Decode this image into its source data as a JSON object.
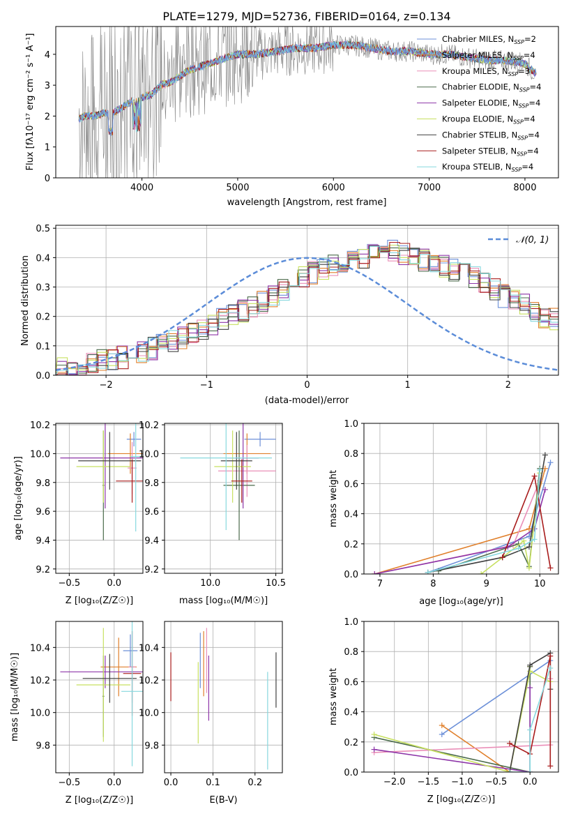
{
  "figure_title": "PLATE=1279, MJD=52736, FIBERID=0164, z=0.134",
  "colors": {
    "Chabrier MILES": "#6b8fd8",
    "Salpeter MILES": "#e07f2a",
    "Kroupa MILES": "#ea8fb8",
    "Chabrier ELODIE": "#4a6a4a",
    "Salpeter ELODIE": "#8d35a8",
    "Kroupa ELODIE": "#c7e060",
    "Chabrier STELIB": "#404040",
    "Salpeter STELIB": "#a81c1c",
    "Kroupa STELIB": "#86d8de"
  },
  "chart_data": [
    {
      "type": "line",
      "title": "PLATE=1279, MJD=52736, FIBERID=0164, z=0.134",
      "xlabel": "wavelength [Angstrom, rest frame]",
      "ylabel": "Flux [fλ10⁻¹⁷ erg cm⁻² s⁻¹ A⁻¹]",
      "xlim": [
        3100,
        8350
      ],
      "ylim": [
        0,
        4.9
      ],
      "xticks": [
        4000,
        5000,
        6000,
        7000,
        8000
      ],
      "yticks": [
        0,
        1,
        2,
        3,
        4
      ],
      "grid": false,
      "legend_position": "top-right",
      "data_series": {
        "name": "data",
        "color": "#808080",
        "x": [
          3340,
          3400,
          3500,
          3600,
          3700,
          3800,
          3900,
          4000,
          4100,
          4200,
          4300,
          4400,
          4500,
          4600,
          4700,
          4800,
          4900,
          5000,
          5200,
          5400,
          5600,
          5800,
          6000,
          6200,
          6400,
          6600,
          6800,
          7000,
          7200,
          7400,
          7600,
          7800,
          8000,
          8100
        ],
        "y": [
          1.9,
          2.0,
          2.0,
          2.1,
          2.1,
          2.3,
          2.5,
          2.6,
          2.7,
          3.0,
          3.1,
          3.3,
          3.5,
          3.6,
          3.7,
          3.8,
          3.9,
          4.0,
          4.0,
          4.1,
          4.2,
          4.2,
          4.3,
          4.3,
          4.2,
          4.1,
          4.1,
          4.0,
          4.0,
          3.9,
          3.8,
          3.8,
          3.7,
          3.4
        ]
      },
      "series": [
        {
          "name": "Chabrier MILES, N_SSP=2"
        },
        {
          "name": "Salpeter MILES, N_SSP=4"
        },
        {
          "name": "Kroupa MILES, N_SSP=3"
        },
        {
          "name": "Chabrier ELODIE, N_SSP=4"
        },
        {
          "name": "Salpeter ELODIE, N_SSP=4"
        },
        {
          "name": "Kroupa ELODIE, N_SSP=4"
        },
        {
          "name": "Chabrier STELIB, N_SSP=4"
        },
        {
          "name": "Salpeter STELIB, N_SSP=4"
        },
        {
          "name": "Kroupa STELIB, N_SSP=4"
        }
      ]
    },
    {
      "type": "line",
      "xlabel": "(data-model)/error",
      "ylabel": "Normed distribution",
      "xlim": [
        -2.5,
        2.5
      ],
      "ylim": [
        0,
        0.51
      ],
      "xticks": [
        -2,
        -1,
        0,
        1,
        2
      ],
      "yticks": [
        0.0,
        0.1,
        0.2,
        0.3,
        0.4,
        0.5
      ],
      "grid": true,
      "legend": "𝒩(0, 1)",
      "legend_position": "top-right",
      "bin_width": 0.1,
      "bin_start": -2.5,
      "histogram_base": [
        0.02,
        0.02,
        0.03,
        0.04,
        0.05,
        0.05,
        0.06,
        0.07,
        0.08,
        0.09,
        0.11,
        0.12,
        0.13,
        0.15,
        0.16,
        0.17,
        0.19,
        0.2,
        0.22,
        0.23,
        0.25,
        0.27,
        0.29,
        0.31,
        0.33,
        0.35,
        0.36,
        0.37,
        0.38,
        0.39,
        0.4,
        0.41,
        0.42,
        0.42,
        0.41,
        0.4,
        0.39,
        0.38,
        0.37,
        0.36,
        0.35,
        0.33,
        0.31,
        0.29,
        0.27,
        0.26,
        0.24,
        0.22,
        0.2,
        0.19,
        0.17,
        0.15,
        0.13,
        0.12,
        0.1,
        0.09,
        0.08,
        0.07,
        0.06,
        0.05,
        0.04,
        0.04,
        0.03,
        0.03,
        0.02,
        0.02,
        0.02,
        0.01,
        0.01,
        0.01,
        0.01,
        0.01,
        0.01,
        0.01,
        0.01
      ],
      "series": [
        {
          "name": "𝒩(0, 1)",
          "type": "gaussian",
          "mean": 0,
          "sigma": 1
        }
      ]
    },
    {
      "type": "scatter",
      "panel": "age-Z",
      "xlabel": "Z [log₁₀(Z/Z☉)]",
      "ylabel": "age  [log₁₀(age/yr)]",
      "xlim": [
        -0.65,
        0.32
      ],
      "ylim": [
        9.17,
        10.21
      ],
      "xticks": [
        -0.5,
        0.0
      ],
      "xtick_labels": [
        "−0.5",
        "0.0"
      ],
      "yticks": [
        9.2,
        9.4,
        9.6,
        9.8,
        10.0,
        10.2
      ],
      "grid": true,
      "crosses": [
        {
          "model": "Chabrier MILES",
          "x": 0.22,
          "xerr": 0.08,
          "y": 10.1,
          "yerr": 0.05
        },
        {
          "model": "Salpeter MILES",
          "x": 0.18,
          "xerr": 0.25,
          "y": 10.0,
          "yerr": 0.14
        },
        {
          "model": "Kroupa MILES",
          "x": 0.2,
          "xerr": 0.05,
          "y": 9.9,
          "yerr": 0.18
        },
        {
          "model": "Chabrier ELODIE",
          "x": -0.12,
          "xerr": 0.01,
          "y": 9.78,
          "yerr": 0.38
        },
        {
          "model": "Salpeter ELODIE",
          "x": -0.1,
          "xerr": 0.5,
          "y": 9.97,
          "yerr": 0.35
        },
        {
          "model": "Kroupa ELODIE",
          "x": -0.12,
          "xerr": 0.3,
          "y": 9.91,
          "yerr": 0.25
        },
        {
          "model": "Chabrier STELIB",
          "x": -0.05,
          "xerr": 0.35,
          "y": 9.95,
          "yerr": 0.2
        },
        {
          "model": "Salpeter STELIB",
          "x": 0.2,
          "xerr": 0.18,
          "y": 9.81,
          "yerr": 0.15
        },
        {
          "model": "Kroupa STELIB",
          "x": 0.24,
          "xerr": 0.06,
          "y": 9.98,
          "yerr": 0.52
        }
      ]
    },
    {
      "type": "scatter",
      "panel": "age-mass",
      "xlabel": "mass [log₁₀(M/M☉)]",
      "xlim": [
        9.65,
        10.55
      ],
      "ylim": [
        9.17,
        10.21
      ],
      "xticks": [
        10.0,
        10.5
      ],
      "yticks": [
        9.2,
        9.4,
        9.6,
        9.8,
        10.0,
        10.2
      ],
      "grid": true,
      "crosses": [
        {
          "model": "Chabrier MILES",
          "x": 10.38,
          "xerr": 0.12,
          "y": 10.1,
          "yerr": 0.05
        },
        {
          "model": "Salpeter MILES",
          "x": 10.28,
          "xerr": 0.18,
          "y": 10.0,
          "yerr": 0.14
        },
        {
          "model": "Kroupa MILES",
          "x": 10.28,
          "xerr": 0.22,
          "y": 9.88,
          "yerr": 0.18
        },
        {
          "model": "Chabrier ELODIE",
          "x": 10.22,
          "xerr": 0.12,
          "y": 9.78,
          "yerr": 0.38
        },
        {
          "model": "Salpeter ELODIE",
          "x": 10.25,
          "xerr": 0.12,
          "y": 9.97,
          "yerr": 0.35
        },
        {
          "model": "Kroupa ELODIE",
          "x": 10.17,
          "xerr": 0.14,
          "y": 9.91,
          "yerr": 0.25
        },
        {
          "model": "Chabrier STELIB",
          "x": 10.2,
          "xerr": 0.12,
          "y": 9.95,
          "yerr": 0.2
        },
        {
          "model": "Salpeter STELIB",
          "x": 10.24,
          "xerr": 0.08,
          "y": 9.81,
          "yerr": 0.15
        },
        {
          "model": "Kroupa STELIB",
          "x": 10.12,
          "xerr": 0.35,
          "y": 9.97,
          "yerr": 0.5
        }
      ]
    },
    {
      "type": "line",
      "panel": "weight-age",
      "xlabel": "age  [log₁₀(age/yr)]",
      "ylabel": "mass weight",
      "xlim": [
        6.7,
        10.35
      ],
      "ylim": [
        0,
        1.0
      ],
      "xticks": [
        7,
        8,
        9,
        10
      ],
      "yticks": [
        0.0,
        0.2,
        0.4,
        0.6,
        0.8,
        1.0
      ],
      "grid": true,
      "series": [
        {
          "model": "Chabrier MILES",
          "x": [
            7.9,
            9.8,
            10.2
          ],
          "y": [
            0.01,
            0.25,
            0.74
          ]
        },
        {
          "model": "Salpeter MILES",
          "x": [
            6.9,
            9.8,
            10.1
          ],
          "y": [
            0.0,
            0.3,
            0.7
          ]
        },
        {
          "model": "Kroupa MILES",
          "x": [
            6.9,
            9.5,
            10.0
          ],
          "y": [
            0.0,
            0.19,
            0.62
          ]
        },
        {
          "model": "Chabrier ELODIE",
          "x": [
            8.1,
            9.6,
            9.8,
            10.0
          ],
          "y": [
            0.02,
            0.2,
            0.05,
            0.7
          ]
        },
        {
          "model": "Salpeter ELODIE",
          "x": [
            6.9,
            9.4,
            9.9,
            10.1
          ],
          "y": [
            0.0,
            0.18,
            0.3,
            0.56
          ]
        },
        {
          "model": "Kroupa ELODIE",
          "x": [
            8.9,
            9.7,
            9.8,
            10.0
          ],
          "y": [
            0.0,
            0.22,
            0.04,
            0.67
          ]
        },
        {
          "model": "Chabrier STELIB",
          "x": [
            7.9,
            9.3,
            9.8,
            10.1
          ],
          "y": [
            0.01,
            0.11,
            0.18,
            0.79
          ]
        },
        {
          "model": "Salpeter STELIB",
          "x": [
            9.3,
            9.9,
            10.2
          ],
          "y": [
            0.11,
            0.65,
            0.04
          ]
        },
        {
          "model": "Kroupa STELIB",
          "x": [
            7.9,
            9.6,
            9.9,
            10.0
          ],
          "y": [
            0.01,
            0.17,
            0.23,
            0.69
          ]
        }
      ]
    },
    {
      "type": "scatter",
      "panel": "mass-Z",
      "xlabel": "Z [log₁₀(Z/Z☉)]",
      "ylabel": "mass [log₁₀(M/M☉)]",
      "xlim": [
        -0.65,
        0.32
      ],
      "ylim": [
        9.63,
        10.56
      ],
      "xticks": [
        -0.5,
        0.0
      ],
      "xtick_labels": [
        "−0.5",
        "0.0"
      ],
      "yticks": [
        9.8,
        10.0,
        10.2,
        10.4
      ],
      "grid": true,
      "crosses": [
        {
          "model": "Chabrier MILES",
          "x": 0.18,
          "xerr": 0.08,
          "y": 10.38,
          "yerr": 0.1
        },
        {
          "model": "Salpeter MILES",
          "x": 0.05,
          "xerr": 0.2,
          "y": 10.28,
          "yerr": 0.18
        },
        {
          "model": "Kroupa MILES",
          "x": 0.2,
          "xerr": 0.04,
          "y": 10.28,
          "yerr": 0.22
        },
        {
          "model": "Chabrier ELODIE",
          "x": -0.12,
          "xerr": 0.01,
          "y": 10.1,
          "yerr": 0.25
        },
        {
          "model": "Salpeter ELODIE",
          "x": -0.1,
          "xerr": 0.5,
          "y": 10.25,
          "yerr": 0.1
        },
        {
          "model": "Kroupa ELODIE",
          "x": -0.12,
          "xerr": 0.3,
          "y": 10.17,
          "yerr": 0.35
        },
        {
          "model": "Chabrier STELIB",
          "x": -0.05,
          "xerr": 0.3,
          "y": 10.21,
          "yerr": 0.15
        },
        {
          "model": "Salpeter STELIB",
          "x": 0.2,
          "xerr": 0.1,
          "y": 10.24,
          "yerr": 0.26
        },
        {
          "model": "Kroupa STELIB",
          "x": 0.2,
          "xerr": 0.12,
          "y": 10.13,
          "yerr": 0.46
        }
      ]
    },
    {
      "type": "scatter",
      "panel": "mass-EBV",
      "xlabel": "E(B-V)",
      "xlim": [
        -0.015,
        0.265
      ],
      "ylim": [
        9.63,
        10.56
      ],
      "xticks": [
        0.0,
        0.1,
        0.2
      ],
      "yticks": [
        9.8,
        10.0,
        10.2,
        10.4
      ],
      "grid": true,
      "bars": [
        {
          "model": "Salpeter STELIB",
          "x": 0.0,
          "y": 10.22,
          "yerr": 0.15
        },
        {
          "model": "Kroupa ELODIE",
          "x": 0.065,
          "y": 10.06,
          "yerr": 0.25
        },
        {
          "model": "Chabrier MILES",
          "x": 0.07,
          "y": 10.32,
          "yerr": 0.17
        },
        {
          "model": "Salpeter MILES",
          "x": 0.078,
          "y": 10.3,
          "yerr": 0.2
        },
        {
          "model": "Kroupa MILES",
          "x": 0.085,
          "y": 10.32,
          "yerr": 0.2
        },
        {
          "model": "Salpeter ELODIE",
          "x": 0.09,
          "y": 10.15,
          "yerr": 0.2
        },
        {
          "model": "Kroupa STELIB",
          "x": 0.23,
          "y": 9.95,
          "yerr": 0.3
        },
        {
          "model": "Chabrier STELIB",
          "x": 0.25,
          "y": 10.2,
          "yerr": 0.17
        }
      ]
    },
    {
      "type": "line",
      "panel": "weight-Z",
      "xlabel": "Z [log₁₀(Z/Z☉)]",
      "ylabel": "mass weight",
      "xlim": [
        -2.45,
        0.42
      ],
      "ylim": [
        0,
        1.0
      ],
      "xticks": [
        -2.0,
        -1.5,
        -1.0,
        -0.5,
        0.0
      ],
      "xtick_labels": [
        "−2.0",
        "−1.5",
        "−1.0",
        "−0.5",
        "0.0"
      ],
      "yticks": [
        0.0,
        0.2,
        0.4,
        0.6,
        0.8,
        1.0
      ],
      "grid": true,
      "series": [
        {
          "model": "Chabrier MILES",
          "x": [
            -1.3,
            0.3
          ],
          "y": [
            0.25,
            0.74
          ]
        },
        {
          "model": "Salpeter MILES",
          "x": [
            -1.3,
            -0.3,
            0.0
          ],
          "y": [
            0.31,
            0.0,
            0.7
          ]
        },
        {
          "model": "Kroupa MILES",
          "x": [
            -2.3,
            0.3,
            0.3
          ],
          "y": [
            0.13,
            0.18,
            0.62
          ]
        },
        {
          "model": "Chabrier ELODIE",
          "x": [
            -2.3,
            0.0,
            0.0
          ],
          "y": [
            0.23,
            0.0,
            0.7
          ]
        },
        {
          "model": "Salpeter ELODIE",
          "x": [
            -2.3,
            0.0,
            0.0
          ],
          "y": [
            0.15,
            0.0,
            0.56
          ]
        },
        {
          "model": "Kroupa ELODIE",
          "x": [
            -2.3,
            -0.3,
            0.0,
            0.3
          ],
          "y": [
            0.25,
            0.0,
            0.67,
            0.6
          ]
        },
        {
          "model": "Chabrier STELIB",
          "x": [
            -0.3,
            0.0,
            0.3,
            0.3
          ],
          "y": [
            0.0,
            0.71,
            0.79,
            0.55
          ]
        },
        {
          "model": "Salpeter STELIB",
          "x": [
            -0.3,
            0.0,
            0.3,
            0.3
          ],
          "y": [
            0.19,
            0.12,
            0.77,
            0.04
          ]
        },
        {
          "model": "Kroupa STELIB",
          "x": [
            -0.3,
            0.0,
            0.0,
            0.3
          ],
          "y": [
            0.0,
            0.0,
            0.28,
            0.69
          ]
        }
      ]
    }
  ]
}
